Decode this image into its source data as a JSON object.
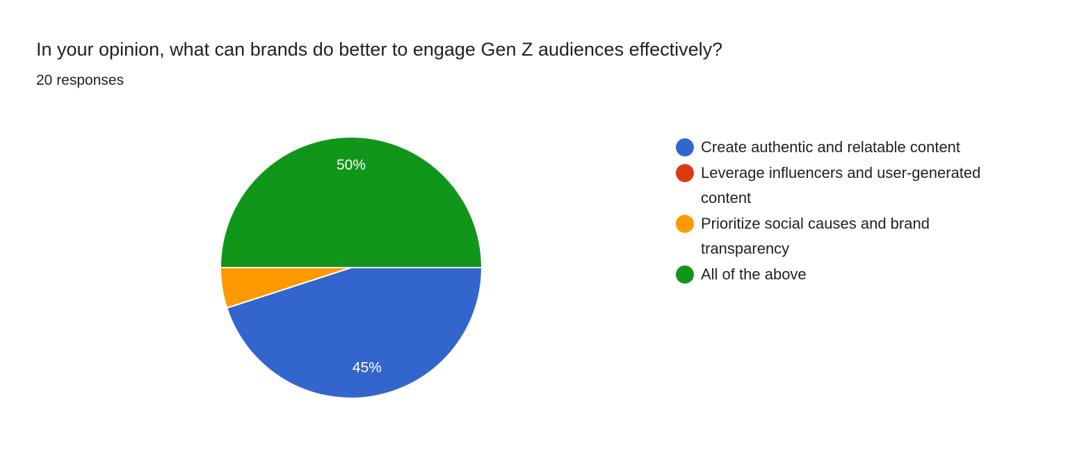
{
  "chart_data": {
    "type": "pie",
    "title": "In your opinion, what can brands do better to engage Gen Z audiences effectively?",
    "subtitle": "20 responses",
    "categories": [
      "Create authentic and relatable content",
      "Leverage influencers and user-generated content",
      "Prioritize social causes and brand transparency",
      "All of the above"
    ],
    "values": [
      45,
      0,
      5,
      50
    ],
    "value_labels": [
      "45%",
      null,
      null,
      "50%"
    ],
    "colors": [
      "#3366cc",
      "#dc3912",
      "#ff9900",
      "#109618"
    ],
    "legend": "right"
  }
}
